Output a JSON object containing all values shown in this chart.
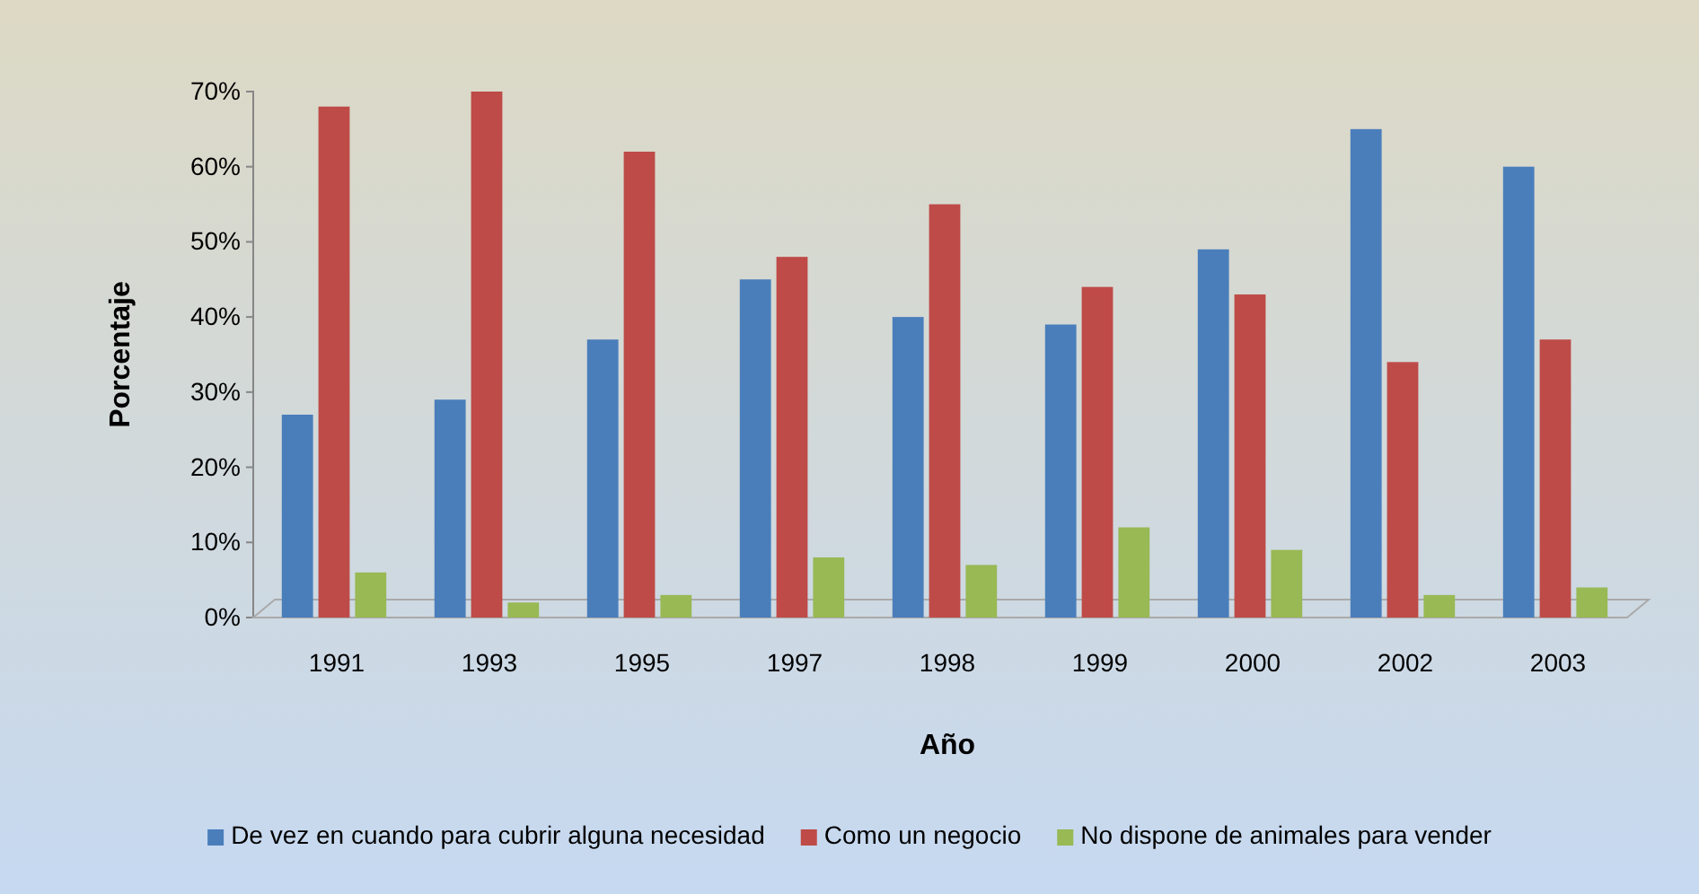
{
  "chart_data": {
    "type": "bar",
    "xlabel": "Año",
    "ylabel": "Porcentaje",
    "categories": [
      "1991",
      "1993",
      "1995",
      "1997",
      "1998",
      "1999",
      "2000",
      "2002",
      "2003"
    ],
    "series": [
      {
        "name": "De vez en cuando para cubrir alguna necesidad",
        "color": "#4a7ebb",
        "values": [
          27,
          29,
          37,
          45,
          40,
          39,
          49,
          65,
          60
        ]
      },
      {
        "name": "Como un negocio",
        "color": "#be4b48",
        "values": [
          68,
          70,
          62,
          48,
          55,
          44,
          43,
          34,
          37
        ]
      },
      {
        "name": "No dispone de animales para vender",
        "color": "#98b954",
        "values": [
          6,
          2,
          3,
          8,
          7,
          12,
          9,
          3,
          4
        ]
      }
    ],
    "ylim": [
      0,
      70
    ],
    "yticks": [
      {
        "value": 0,
        "label": "0%"
      },
      {
        "value": 10,
        "label": "10%"
      },
      {
        "value": 20,
        "label": "20%"
      },
      {
        "value": 30,
        "label": "30%"
      },
      {
        "value": 40,
        "label": "40%"
      },
      {
        "value": 50,
        "label": "50%"
      },
      {
        "value": 60,
        "label": "60%"
      },
      {
        "value": 70,
        "label": "70%"
      }
    ],
    "grid": false,
    "legend": "bottom"
  }
}
